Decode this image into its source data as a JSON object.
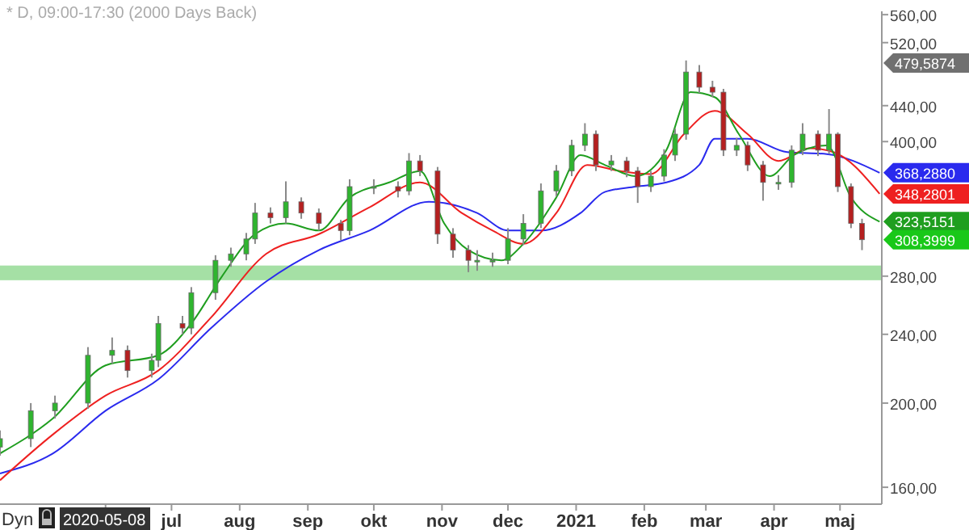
{
  "chart_data": {
    "type": "candlestick",
    "title": "* D, 09:00-17:30 (2000 Days Back)",
    "log": true,
    "grid": false,
    "xlim": [
      "2020-04-14",
      "2021-05-20"
    ],
    "xticks": [
      {
        "value": "2020-06-01",
        "label": null
      },
      {
        "value": "2020-07-01",
        "label": "jul"
      },
      {
        "value": "2020-08-01",
        "label": "aug"
      },
      {
        "value": "2020-09-01",
        "label": "sep"
      },
      {
        "value": "2020-10-01",
        "label": "okt"
      },
      {
        "value": "2020-11-01",
        "label": "nov"
      },
      {
        "value": "2020-12-01",
        "label": "dec"
      },
      {
        "value": "2021-01-01",
        "label": "2021"
      },
      {
        "value": "2021-02-01",
        "label": "feb"
      },
      {
        "value": "2021-03-01",
        "label": "mar"
      },
      {
        "value": "2021-04-01",
        "label": "apr"
      },
      {
        "value": "2021-05-01",
        "label": "maj"
      }
    ],
    "ylim": [
      153,
      565
    ],
    "yticks": [
      {
        "value": 160,
        "label": "160,00"
      },
      {
        "value": 200,
        "label": "200,00"
      },
      {
        "value": 240,
        "label": "240,00"
      },
      {
        "value": 280,
        "label": "280,00"
      },
      {
        "value": 400,
        "label": "400,00"
      },
      {
        "value": 440,
        "label": "440,00"
      },
      {
        "value": 520,
        "label": "520,00"
      },
      {
        "value": 560,
        "label": "560,00"
      }
    ],
    "x": [
      "2020-04-14",
      "2020-04-28",
      "2020-05-09",
      "2020-05-24",
      "2020-06-04",
      "2020-06-11",
      "2020-06-22",
      "2020-06-25",
      "2020-07-06",
      "2020-07-10",
      "2020-07-21",
      "2020-07-28",
      "2020-08-04",
      "2020-08-08",
      "2020-08-15",
      "2020-08-22",
      "2020-08-29",
      "2020-09-06",
      "2020-09-16",
      "2020-09-20",
      "2020-10-01",
      "2020-10-12",
      "2020-10-17",
      "2020-10-22",
      "2020-10-30",
      "2020-11-06",
      "2020-11-13",
      "2020-11-17",
      "2020-11-24",
      "2020-12-01",
      "2020-12-08",
      "2020-12-16",
      "2020-12-23",
      "2020-12-30",
      "2021-01-05",
      "2021-01-10",
      "2021-01-17",
      "2021-01-24",
      "2021-01-29",
      "2021-02-04",
      "2021-02-10",
      "2021-02-15",
      "2021-02-20",
      "2021-02-26",
      "2021-03-04",
      "2021-03-09",
      "2021-03-15",
      "2021-03-20",
      "2021-03-27",
      "2021-04-03",
      "2021-04-09",
      "2021-04-14",
      "2021-04-21",
      "2021-04-26",
      "2021-04-30",
      "2021-05-06",
      "2021-05-11"
    ],
    "ohlc": [
      [
        178,
        186,
        174,
        182
      ],
      [
        182,
        200,
        178,
        196
      ],
      [
        196,
        204,
        192,
        200
      ],
      [
        200,
        232,
        197,
        227
      ],
      [
        227,
        238,
        222,
        230
      ],
      [
        230,
        233,
        214,
        218
      ],
      [
        218,
        228,
        214,
        224
      ],
      [
        224,
        252,
        220,
        247
      ],
      [
        247,
        252,
        240,
        244
      ],
      [
        244,
        272,
        240,
        268
      ],
      [
        268,
        296,
        263,
        292
      ],
      [
        292,
        302,
        287,
        297
      ],
      [
        297,
        314,
        292,
        309
      ],
      [
        309,
        340,
        305,
        331
      ],
      [
        331,
        336,
        322,
        327
      ],
      [
        327,
        360,
        322,
        341
      ],
      [
        341,
        345,
        326,
        331
      ],
      [
        331,
        335,
        316,
        322
      ],
      [
        322,
        325,
        308,
        316
      ],
      [
        316,
        362,
        312,
        355
      ],
      [
        355,
        362,
        348,
        355
      ],
      [
        355,
        360,
        345,
        351
      ],
      [
        351,
        388,
        347,
        380
      ],
      [
        380,
        386,
        365,
        370
      ],
      [
        370,
        374,
        305,
        313
      ],
      [
        313,
        318,
        294,
        300
      ],
      [
        300,
        304,
        283,
        292
      ],
      [
        292,
        300,
        284,
        292
      ],
      [
        292,
        298,
        287,
        292
      ],
      [
        292,
        318,
        289,
        309
      ],
      [
        309,
        330,
        304,
        322
      ],
      [
        322,
        358,
        318,
        351
      ],
      [
        351,
        376,
        346,
        370
      ],
      [
        370,
        402,
        365,
        396
      ],
      [
        396,
        420,
        390,
        408
      ],
      [
        408,
        412,
        370,
        376
      ],
      [
        376,
        386,
        370,
        380
      ],
      [
        380,
        384,
        364,
        370
      ],
      [
        370,
        374,
        340,
        355
      ],
      [
        355,
        370,
        350,
        365
      ],
      [
        365,
        392,
        360,
        386
      ],
      [
        386,
        414,
        380,
        408
      ],
      [
        408,
        496,
        402,
        481
      ],
      [
        481,
        490,
        455,
        462
      ],
      [
        462,
        470,
        450,
        456
      ],
      [
        456,
        460,
        385,
        391
      ],
      [
        391,
        404,
        385,
        396
      ],
      [
        396,
        400,
        370,
        376
      ],
      [
        376,
        380,
        342,
        359
      ],
      [
        359,
        366,
        352,
        359
      ],
      [
        359,
        396,
        354,
        391
      ],
      [
        391,
        420,
        386,
        408
      ],
      [
        408,
        412,
        385,
        391
      ],
      [
        391,
        436,
        387,
        408
      ],
      [
        408,
        410,
        350,
        355
      ],
      [
        355,
        358,
        318,
        322
      ],
      [
        322,
        326,
        300,
        308.3999
      ]
    ],
    "colors": [
      "#2fb52f",
      "#2fb52f",
      "#2fb52f",
      "#2fb52f",
      "#2fb52f",
      "#b52020",
      "#2fb52f",
      "#2fb52f",
      "#b52020",
      "#2fb52f",
      "#2fb52f",
      "#2fb52f",
      "#2fb52f",
      "#2fb52f",
      "#b52020",
      "#2fb52f",
      "#b52020",
      "#b52020",
      "#b52020",
      "#2fb52f",
      "#2fb52f",
      "#b52020",
      "#2fb52f",
      "#b52020",
      "#b52020",
      "#b52020",
      "#b52020",
      "#2fb52f",
      "#2fb52f",
      "#2fb52f",
      "#2fb52f",
      "#2fb52f",
      "#2fb52f",
      "#2fb52f",
      "#2fb52f",
      "#b52020",
      "#2fb52f",
      "#b52020",
      "#b52020",
      "#2fb52f",
      "#2fb52f",
      "#2fb52f",
      "#2fb52f",
      "#b52020",
      "#b52020",
      "#b52020",
      "#2fb52f",
      "#b52020",
      "#b52020",
      "#2fb52f",
      "#2fb52f",
      "#2fb52f",
      "#b52020",
      "#2fb52f",
      "#b52020",
      "#b52020",
      "#b52020"
    ],
    "series": [
      {
        "type": "line",
        "color": "#2a2aee",
        "x": [
          "2020-04-14",
          "2020-05-08",
          "2020-06-01",
          "2020-06-25",
          "2020-07-19",
          "2020-08-13",
          "2020-09-06",
          "2020-09-29",
          "2020-10-26",
          "2020-11-17",
          "2020-12-01",
          "2020-12-16",
          "2021-01-03",
          "2021-01-14",
          "2021-01-28",
          "2021-02-11",
          "2021-02-26",
          "2021-03-05",
          "2021-03-20",
          "2021-04-07",
          "2021-04-25",
          "2021-05-19"
        ],
        "values": [
          166,
          175,
          196,
          213,
          244,
          276,
          300,
          316,
          341,
          331,
          316,
          316,
          331,
          350,
          355,
          359,
          376,
          403,
          403,
          389,
          387,
          368.288
        ],
        "value_labels": [
          null,
          null,
          null,
          null,
          null,
          null,
          null,
          null,
          null,
          null,
          null,
          null,
          null,
          null,
          null,
          null,
          null,
          null,
          null,
          null,
          null,
          "368,2880"
        ]
      },
      {
        "type": "line",
        "color": "#ee2020",
        "x": [
          "2020-04-14",
          "2020-05-08",
          "2020-06-01",
          "2020-06-25",
          "2020-07-19",
          "2020-08-13",
          "2020-09-06",
          "2020-09-29",
          "2020-10-22",
          "2020-11-10",
          "2020-11-24",
          "2020-12-08",
          "2020-12-23",
          "2021-01-06",
          "2021-01-21",
          "2021-02-04",
          "2021-02-19",
          "2021-03-05",
          "2021-03-20",
          "2021-04-03",
          "2021-04-17",
          "2021-04-28",
          "2021-05-19"
        ],
        "values": [
          163,
          184,
          204,
          218,
          251,
          297,
          313,
          336,
          359,
          331,
          316,
          305,
          331,
          376,
          370,
          367,
          408,
          434,
          408,
          380,
          393,
          389,
          348.2801
        ],
        "value_labels": [
          null,
          null,
          null,
          null,
          null,
          null,
          null,
          null,
          null,
          null,
          null,
          null,
          null,
          null,
          null,
          null,
          null,
          null,
          null,
          null,
          null,
          null,
          "348,2801"
        ]
      },
      {
        "type": "line",
        "color": "#1f9e1f",
        "x": [
          "2020-04-14",
          "2020-05-08",
          "2020-06-01",
          "2020-06-25",
          "2020-07-10",
          "2020-07-24",
          "2020-08-08",
          "2020-08-22",
          "2020-09-06",
          "2020-09-20",
          "2020-10-08",
          "2020-10-22",
          "2020-11-02",
          "2020-11-13",
          "2020-11-28",
          "2020-12-08",
          "2020-12-23",
          "2021-01-03",
          "2021-01-14",
          "2021-01-28",
          "2021-02-11",
          "2021-02-22",
          "2021-03-05",
          "2021-03-16",
          "2021-03-30",
          "2021-04-10",
          "2021-04-25",
          "2021-05-06",
          "2021-05-19"
        ],
        "values": [
          175,
          192,
          221,
          227,
          247,
          280,
          313,
          322,
          316,
          345,
          359,
          370,
          322,
          300,
          292,
          305,
          345,
          386,
          376,
          365,
          391,
          456,
          450,
          408,
          365,
          386,
          396,
          345,
          323.5151
        ],
        "value_labels": [
          null,
          null,
          null,
          null,
          null,
          null,
          null,
          null,
          null,
          null,
          null,
          null,
          null,
          null,
          null,
          null,
          null,
          null,
          null,
          null,
          null,
          null,
          null,
          null,
          null,
          null,
          null,
          null,
          "323,5151"
        ]
      }
    ],
    "bands": [
      {
        "axis": "y",
        "from": 277,
        "to": 288,
        "color": "#8fd88f"
      }
    ],
    "value_labels": [
      null,
      null,
      null,
      null,
      null,
      null,
      null,
      null,
      null,
      null,
      null,
      null,
      null,
      null,
      null,
      null,
      null,
      null,
      null,
      null,
      null,
      null,
      null,
      null,
      null,
      null,
      null,
      null,
      null,
      null,
      null,
      null,
      null,
      null,
      null,
      null,
      null,
      null,
      null,
      null,
      null,
      null,
      null,
      null,
      null,
      null,
      null,
      null,
      null,
      null,
      null,
      null,
      null,
      null,
      null,
      null,
      "308,3999"
    ],
    "annotations": [
      "479,5874",
      "Dyn",
      "2020-05-08"
    ]
  }
}
